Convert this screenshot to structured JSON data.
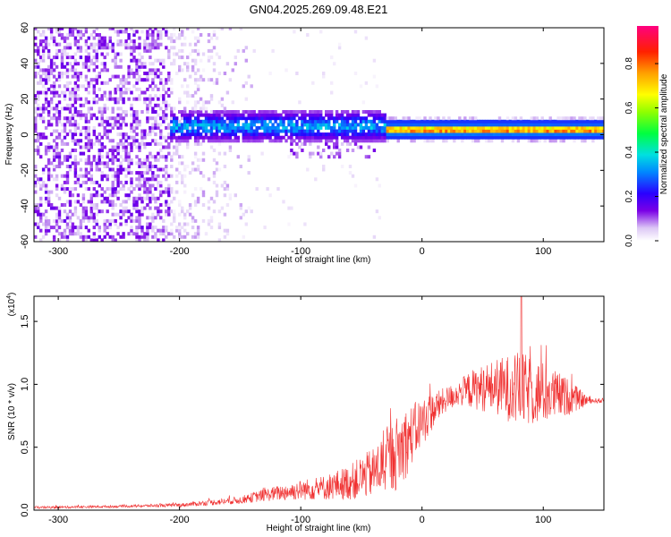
{
  "title": "GN04.2025.269.09.48.E21",
  "chart_data": [
    {
      "type": "heatmap",
      "xlabel": "Height of straight line (km)",
      "ylabel": "Frequency (Hz)",
      "xlim": [
        -320,
        150
      ],
      "ylim": [
        -60,
        60
      ],
      "xticks": [
        -300,
        -200,
        -100,
        0,
        100
      ],
      "yticks": [
        -60,
        -40,
        -20,
        0,
        20,
        40,
        60
      ],
      "colorbar": {
        "label": "Normalized spectral amplitude",
        "range": [
          0.0,
          0.97
        ],
        "ticks": [
          "0.0",
          "0.2",
          "0.4",
          "0.6",
          "0.8"
        ],
        "tick_values": [
          0.0,
          0.2,
          0.4,
          0.6,
          0.8
        ]
      },
      "regions": [
        {
          "x": [
            -320,
            -210
          ],
          "freq_band": [
            -60,
            60
          ],
          "amplitude": [
            0.02,
            0.15
          ],
          "pattern": "scattered vertical streaks"
        },
        {
          "x": [
            -210,
            -140
          ],
          "freq_band": [
            -60,
            60
          ],
          "amplitude": [
            0.01,
            0.08
          ],
          "pattern": "faint scattered"
        },
        {
          "x": [
            -210,
            -30
          ],
          "freq_band": [
            -5,
            12
          ],
          "amplitude": [
            0.1,
            0.35
          ],
          "pattern": "dense band"
        },
        {
          "x": [
            -30,
            150
          ],
          "freq_band": [
            -2,
            6
          ],
          "amplitude": [
            0.3,
            0.95
          ],
          "pattern": "narrow bright band near 2 Hz"
        }
      ]
    },
    {
      "type": "line",
      "xlabel": "Height of straight line (km)",
      "ylabel": "SNR (10 * v/v)",
      "y_multiplier": "(x10",
      "y_multiplier_exp": "4",
      "xlim": [
        -320,
        150
      ],
      "ylim": [
        0,
        1.7
      ],
      "xticks": [
        -300,
        -200,
        -100,
        0,
        100
      ],
      "yticks": [
        "0.0",
        "0.5",
        "1.0",
        "1.5"
      ],
      "ytick_values": [
        0.0,
        0.5,
        1.0,
        1.5
      ],
      "color": "#f03030",
      "envelope": {
        "x": [
          -320,
          -250,
          -200,
          -150,
          -130,
          -100,
          -80,
          -60,
          -40,
          -30,
          -20,
          -15,
          -10,
          0,
          10,
          20,
          30,
          40,
          60,
          80,
          100,
          120,
          130,
          140,
          150
        ],
        "base": [
          0.02,
          0.03,
          0.04,
          0.08,
          0.12,
          0.16,
          0.18,
          0.22,
          0.3,
          0.38,
          0.46,
          0.52,
          0.58,
          0.7,
          0.8,
          0.88,
          0.93,
          0.96,
          0.98,
          0.96,
          0.93,
          0.9,
          0.88,
          0.87,
          0.87
        ],
        "amp": [
          0.01,
          0.01,
          0.015,
          0.03,
          0.05,
          0.08,
          0.1,
          0.14,
          0.2,
          0.25,
          0.3,
          0.3,
          0.25,
          0.2,
          0.14,
          0.1,
          0.1,
          0.15,
          0.22,
          0.3,
          0.25,
          0.15,
          0.08,
          0.02,
          0.02
        ]
      },
      "peak": {
        "x": 82,
        "y": 1.7
      }
    }
  ]
}
